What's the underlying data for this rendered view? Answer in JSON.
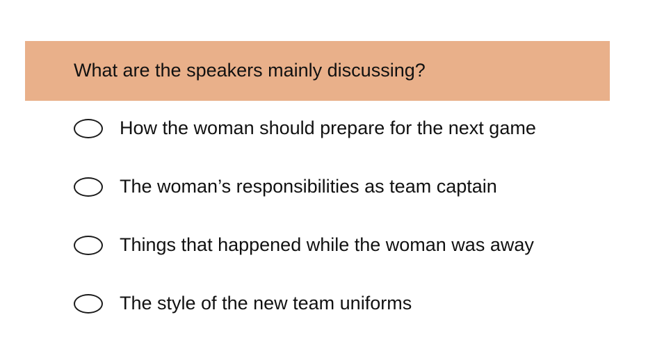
{
  "question": {
    "text": "What are the speakers mainly discussing?"
  },
  "options": [
    {
      "label": "How the woman should prepare for the next game",
      "selected": false
    },
    {
      "label": "The woman’s responsibilities as team captain",
      "selected": false
    },
    {
      "label": "Things that happened while the woman was away",
      "selected": false
    },
    {
      "label": "The style of the new team uniforms",
      "selected": false
    }
  ],
  "colors": {
    "banner": "#e9b08a",
    "text": "#111111",
    "radio_border": "#1a1a1a"
  }
}
